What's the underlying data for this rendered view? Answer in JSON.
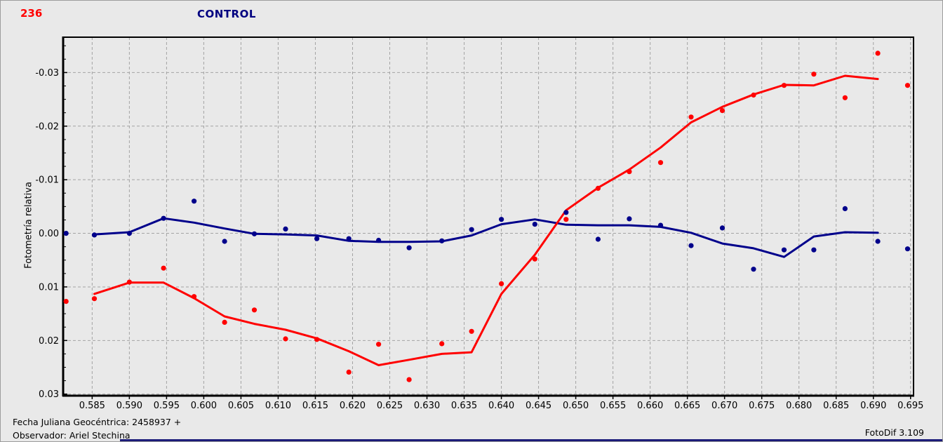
{
  "window": {
    "asteroid_number": "236",
    "title": "CONTROL",
    "footer_line1": "Fecha Juliana Geocéntrica: 2458937 +",
    "footer_line2": "Observador: Ariel Stechina",
    "app_version": "FotoDif 3.109"
  },
  "colors": {
    "background": "#e9e9e9",
    "grid": "#a3a3a3",
    "axis_frame": "#000000",
    "target_red": "#ff0000",
    "control_blue": "#00008b",
    "title_navy": "#000080",
    "number_red": "#ff0000",
    "bottom_strip_navy": "#1b1b78"
  },
  "chart_data": {
    "type": "scatter",
    "title": "CONTROL",
    "xlabel": "",
    "ylabel": "Fotometría relativa",
    "grid": "dashed",
    "legend": "none",
    "x_axis": {
      "min": 0.5811,
      "max": 0.6954,
      "ticks": [
        0.585,
        0.59,
        0.595,
        0.6,
        0.605,
        0.61,
        0.615,
        0.62,
        0.625,
        0.63,
        0.635,
        0.64,
        0.645,
        0.65,
        0.655,
        0.66,
        0.665,
        0.67,
        0.675,
        0.68,
        0.685,
        0.69,
        0.695
      ],
      "tick_decimals": 3
    },
    "y_axis": {
      "inverted": true,
      "top": -0.0366,
      "bottom": 0.0303,
      "ticks": [
        -0.03,
        -0.02,
        -0.01,
        0.0,
        0.01,
        0.02,
        0.03
      ],
      "minor_tick_step": 0.0025,
      "tick_decimals": 2
    },
    "series": [
      {
        "name": "control-star",
        "color": "#00008b",
        "points": [
          [
            0.5815,
            0.0
          ],
          [
            0.5853,
            0.0003
          ],
          [
            0.59,
            0.0
          ],
          [
            0.5946,
            -0.0028
          ],
          [
            0.5987,
            -0.006
          ],
          [
            0.6028,
            0.0015
          ],
          [
            0.6068,
            0.0001
          ],
          [
            0.611,
            -0.0008
          ],
          [
            0.6152,
            0.001
          ],
          [
            0.6195,
            0.001
          ],
          [
            0.6235,
            0.0013
          ],
          [
            0.6276,
            0.0027
          ],
          [
            0.632,
            0.0014
          ],
          [
            0.636,
            -0.0007
          ],
          [
            0.64,
            -0.0026
          ],
          [
            0.6445,
            -0.0017
          ],
          [
            0.6487,
            -0.0039
          ],
          [
            0.653,
            0.0011
          ],
          [
            0.6572,
            -0.0027
          ],
          [
            0.6614,
            -0.0015
          ],
          [
            0.6655,
            0.0023
          ],
          [
            0.6697,
            -0.001
          ],
          [
            0.6739,
            0.0067
          ],
          [
            0.678,
            0.0031
          ],
          [
            0.682,
            0.0031
          ],
          [
            0.6862,
            -0.0046
          ],
          [
            0.6906,
            0.0015
          ],
          [
            0.6946,
            0.0029
          ]
        ],
        "smoothed_line": [
          [
            0.5853,
            0.0002
          ],
          [
            0.59,
            -0.0002
          ],
          [
            0.5946,
            -0.0028
          ],
          [
            0.5987,
            -0.002
          ],
          [
            0.6028,
            -0.0009
          ],
          [
            0.6068,
            0.0001
          ],
          [
            0.611,
            0.0002
          ],
          [
            0.6152,
            0.0004
          ],
          [
            0.6195,
            0.0014
          ],
          [
            0.6235,
            0.0016
          ],
          [
            0.6276,
            0.0016
          ],
          [
            0.632,
            0.0015
          ],
          [
            0.636,
            0.0004
          ],
          [
            0.64,
            -0.0017
          ],
          [
            0.6445,
            -0.0026
          ],
          [
            0.6487,
            -0.0016
          ],
          [
            0.653,
            -0.0015
          ],
          [
            0.6572,
            -0.0015
          ],
          [
            0.6614,
            -0.0012
          ],
          [
            0.6655,
            -0.0001
          ],
          [
            0.6697,
            0.0019
          ],
          [
            0.6739,
            0.0028
          ],
          [
            0.678,
            0.0044
          ],
          [
            0.682,
            0.0006
          ],
          [
            0.6862,
            -0.0002
          ],
          [
            0.6906,
            -0.0001
          ]
        ]
      },
      {
        "name": "asteroid-236",
        "color": "#ff0000",
        "points": [
          [
            0.5815,
            0.0127
          ],
          [
            0.5853,
            0.0122
          ],
          [
            0.59,
            0.0091
          ],
          [
            0.5946,
            0.0065
          ],
          [
            0.5987,
            0.0118
          ],
          [
            0.6028,
            0.0166
          ],
          [
            0.6068,
            0.0143
          ],
          [
            0.611,
            0.0197
          ],
          [
            0.6152,
            0.0198
          ],
          [
            0.6195,
            0.0259
          ],
          [
            0.6235,
            0.0207
          ],
          [
            0.6276,
            0.0273
          ],
          [
            0.632,
            0.0206
          ],
          [
            0.636,
            0.0183
          ],
          [
            0.64,
            0.0094
          ],
          [
            0.6445,
            0.0048
          ],
          [
            0.6487,
            -0.0026
          ],
          [
            0.653,
            -0.0084
          ],
          [
            0.6572,
            -0.0115
          ],
          [
            0.6614,
            -0.0132
          ],
          [
            0.6655,
            -0.0217
          ],
          [
            0.6697,
            -0.0229
          ],
          [
            0.6739,
            -0.0258
          ],
          [
            0.678,
            -0.0276
          ],
          [
            0.682,
            -0.0297
          ],
          [
            0.6862,
            -0.0253
          ],
          [
            0.6906,
            -0.0336
          ],
          [
            0.6946,
            -0.0276
          ]
        ],
        "smoothed_line": [
          [
            0.5853,
            0.0113
          ],
          [
            0.59,
            0.0092
          ],
          [
            0.5946,
            0.0092
          ],
          [
            0.5987,
            0.0121
          ],
          [
            0.6028,
            0.0155
          ],
          [
            0.6068,
            0.0169
          ],
          [
            0.611,
            0.018
          ],
          [
            0.6152,
            0.0196
          ],
          [
            0.6195,
            0.022
          ],
          [
            0.6235,
            0.0246
          ],
          [
            0.6276,
            0.0236
          ],
          [
            0.632,
            0.0225
          ],
          [
            0.636,
            0.0222
          ],
          [
            0.64,
            0.0113
          ],
          [
            0.6445,
            0.004
          ],
          [
            0.6487,
            -0.0043
          ],
          [
            0.653,
            -0.0085
          ],
          [
            0.6572,
            -0.0119
          ],
          [
            0.6614,
            -0.016
          ],
          [
            0.6655,
            -0.0207
          ],
          [
            0.6697,
            -0.0236
          ],
          [
            0.6739,
            -0.0259
          ],
          [
            0.678,
            -0.0277
          ],
          [
            0.682,
            -0.0276
          ],
          [
            0.6862,
            -0.0294
          ],
          [
            0.6906,
            -0.0288
          ]
        ]
      }
    ]
  }
}
